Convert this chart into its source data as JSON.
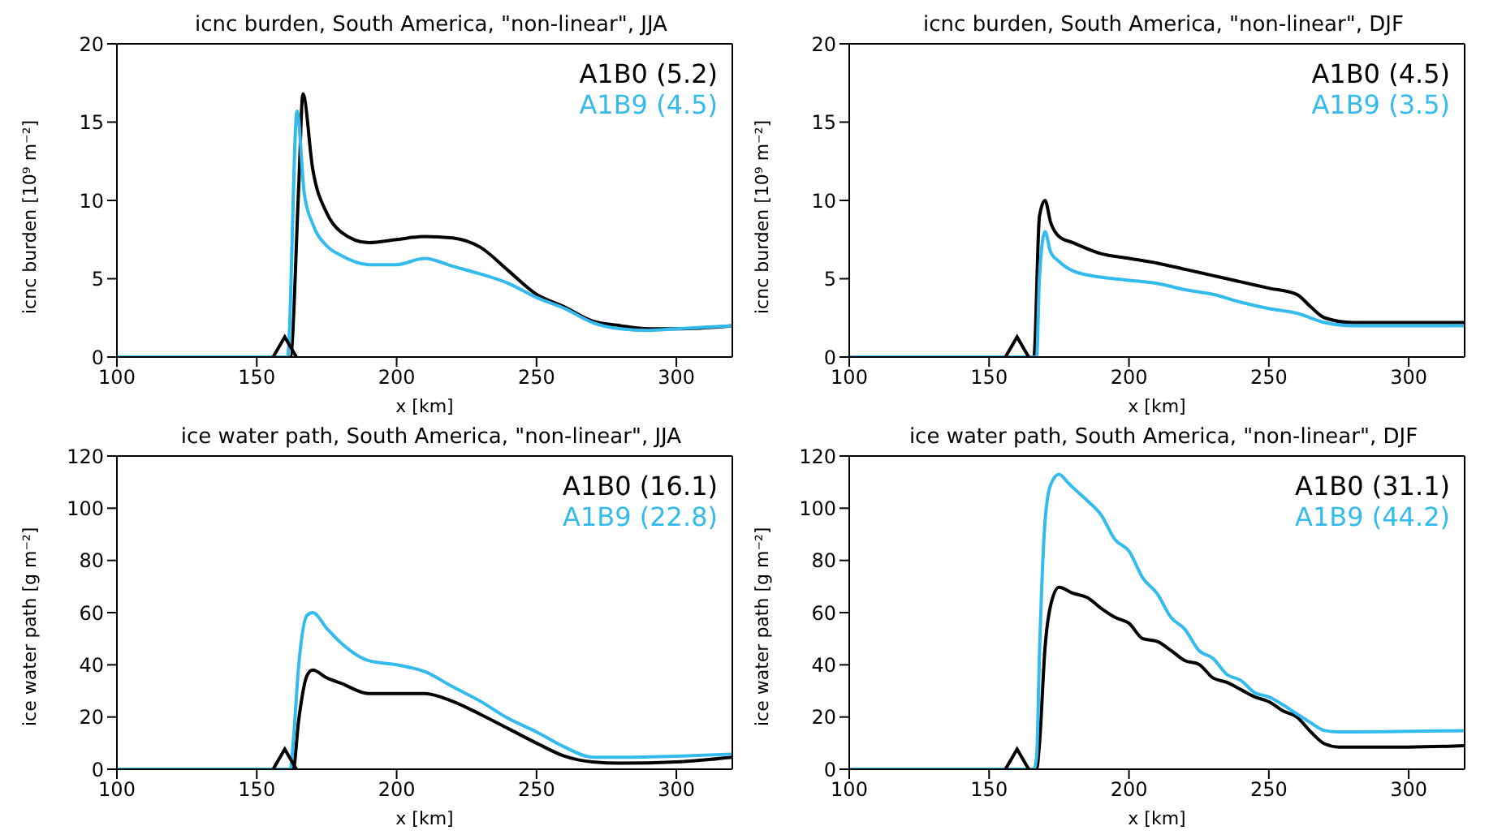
{
  "chart_data": [
    {
      "type": "line",
      "title": "icnc burden, South America, \"non-linear\", JJA",
      "xlabel": "x [km]",
      "ylabel": "icnc burden [10⁹ m⁻²]",
      "xlim": [
        100,
        320
      ],
      "xticks": [
        100,
        150,
        200,
        250,
        300
      ],
      "ylim": [
        0,
        20
      ],
      "yticks": [
        0,
        5,
        10,
        15,
        20
      ],
      "grid": false,
      "legend": "top right",
      "line_style": "solid",
      "series": [
        {
          "name": "A1B0 (5.2)",
          "color": "#000000",
          "x": [
            100,
            162,
            165,
            166.5,
            170,
            175,
            180,
            190,
            200,
            210,
            220,
            230,
            240,
            250,
            260,
            270,
            280,
            290,
            300,
            320
          ],
          "values": [
            0,
            0,
            10.9,
            16.8,
            12.0,
            9.2,
            8.0,
            7.3,
            7.5,
            7.7,
            7.6,
            7.0,
            5.5,
            4.0,
            3.2,
            2.3,
            2.0,
            1.8,
            1.8,
            2.0
          ]
        },
        {
          "name": "A1B9 (4.5)",
          "color": "#33bbee",
          "x": [
            100,
            161,
            164.4,
            167,
            170,
            175,
            180,
            190,
            200,
            210,
            220,
            230,
            240,
            250,
            260,
            270,
            280,
            290,
            300,
            320
          ],
          "values": [
            0,
            0,
            15.7,
            10.4,
            8.5,
            7.1,
            6.5,
            5.9,
            5.9,
            6.3,
            5.8,
            5.3,
            4.7,
            3.8,
            3.1,
            2.2,
            1.8,
            1.7,
            1.8,
            2.0
          ]
        },
        {
          "type": "scatter",
          "marker": "triangle",
          "color": "#000000",
          "x": [
            160
          ],
          "values": [
            0
          ]
        }
      ]
    },
    {
      "type": "line",
      "title": "icnc burden, South America, \"non-linear\", DJF",
      "xlabel": "x [km]",
      "ylabel": "icnc burden [10⁹ m⁻²]",
      "xlim": [
        100,
        320
      ],
      "xticks": [
        100,
        150,
        200,
        250,
        300
      ],
      "ylim": [
        0,
        20
      ],
      "yticks": [
        0,
        5,
        10,
        15,
        20
      ],
      "grid": false,
      "legend": "top right",
      "line_style": "solid",
      "series": [
        {
          "name": "A1B0 (4.5)",
          "color": "#000000",
          "x": [
            100,
            166,
            168,
            170,
            172,
            175,
            180,
            190,
            200,
            210,
            220,
            230,
            240,
            250,
            260,
            265,
            270,
            280,
            300,
            320
          ],
          "values": [
            0,
            0,
            9.0,
            10.0,
            8.6,
            7.7,
            7.3,
            6.6,
            6.3,
            6.0,
            5.6,
            5.2,
            4.8,
            4.4,
            4.0,
            3.2,
            2.5,
            2.2,
            2.2,
            2.2
          ]
        },
        {
          "name": "A1B9 (3.5)",
          "color": "#33bbee",
          "x": [
            100,
            167,
            168,
            170,
            172,
            175,
            180,
            190,
            200,
            210,
            220,
            230,
            240,
            250,
            260,
            270,
            280,
            320
          ],
          "values": [
            0,
            0,
            5.1,
            8.0,
            6.7,
            6.1,
            5.5,
            5.1,
            4.9,
            4.7,
            4.3,
            4.0,
            3.5,
            3.1,
            2.8,
            2.2,
            2.0,
            2.0
          ]
        },
        {
          "type": "scatter",
          "marker": "triangle",
          "color": "#000000",
          "x": [
            160
          ],
          "values": [
            0
          ]
        }
      ]
    },
    {
      "type": "line",
      "title": "ice water path, South America, \"non-linear\", JJA",
      "xlabel": "x [km]",
      "ylabel": "ice water path [g m⁻²]",
      "xlim": [
        100,
        320
      ],
      "xticks": [
        100,
        150,
        200,
        250,
        300
      ],
      "ylim": [
        0,
        120
      ],
      "yticks": [
        0,
        20,
        40,
        60,
        80,
        100,
        120
      ],
      "grid": false,
      "legend": "top right",
      "line_style": "solid",
      "series": [
        {
          "name": "A1B0 (16.1)",
          "color": "#000000",
          "x": [
            100,
            163,
            165,
            168,
            170,
            175,
            180,
            190,
            200,
            210,
            220,
            230,
            240,
            250,
            260,
            270,
            280,
            300,
            320
          ],
          "values": [
            0,
            0,
            19,
            36,
            38,
            35,
            33,
            29,
            29,
            29,
            26,
            21,
            15.5,
            10,
            5,
            2.8,
            2.3,
            2.8,
            4.6
          ]
        },
        {
          "name": "A1B9 (22.8)",
          "color": "#33bbee",
          "x": [
            100,
            162,
            163,
            165,
            168,
            170,
            175,
            180,
            190,
            200,
            210,
            220,
            230,
            240,
            250,
            260,
            270,
            280,
            300,
            320
          ],
          "values": [
            0,
            0,
            10,
            40,
            59,
            60,
            54,
            48.5,
            41.6,
            40,
            37.4,
            31.6,
            26,
            19.4,
            14.3,
            8.5,
            4.6,
            4.6,
            5,
            5.8
          ]
        },
        {
          "type": "scatter",
          "marker": "triangle",
          "color": "#000000",
          "x": [
            160
          ],
          "values": [
            0
          ]
        }
      ]
    },
    {
      "type": "line",
      "title": "ice water path, South America, \"non-linear\", DJF",
      "xlabel": "x [km]",
      "ylabel": "ice water path [g m⁻²]",
      "xlim": [
        100,
        320
      ],
      "xticks": [
        100,
        150,
        200,
        250,
        300
      ],
      "ylim": [
        0,
        120
      ],
      "yticks": [
        0,
        20,
        40,
        60,
        80,
        100,
        120
      ],
      "grid": false,
      "legend": "top right",
      "line_style": "solid",
      "series": [
        {
          "name": "A1B0 (31.1)",
          "color": "#000000",
          "x": [
            100,
            167,
            168,
            170,
            172,
            175,
            180,
            185,
            190,
            195,
            200,
            205,
            210,
            215,
            220,
            225,
            230,
            235,
            240,
            245,
            250,
            255,
            260,
            265,
            270,
            275,
            300,
            320
          ],
          "values": [
            0,
            0,
            9.7,
            46.6,
            62.8,
            69.7,
            67.4,
            65.8,
            61.7,
            58.2,
            55.9,
            50,
            49,
            45.5,
            41.6,
            40.2,
            35,
            33.3,
            30.5,
            27.7,
            25.9,
            22.4,
            20,
            14.3,
            9.7,
            8.5,
            8.5,
            9
          ]
        },
        {
          "name": "A1B9 (44.2)",
          "color": "#33bbee",
          "x": [
            100,
            166,
            167,
            168,
            170,
            172,
            175,
            178,
            180,
            185,
            190,
            195,
            200,
            205,
            210,
            215,
            220,
            225,
            230,
            235,
            240,
            245,
            250,
            255,
            260,
            265,
            270,
            275,
            320
          ],
          "values": [
            0,
            0,
            5,
            44,
            95,
            109,
            113,
            110,
            107.9,
            103,
            97.5,
            88,
            83.6,
            73.2,
            67.4,
            58.2,
            53.6,
            45.5,
            42.5,
            36.3,
            34,
            29.3,
            27.7,
            24.7,
            21.2,
            17.8,
            14.8,
            14.3,
            14.8
          ]
        },
        {
          "type": "scatter",
          "marker": "triangle",
          "color": "#000000",
          "x": [
            160
          ],
          "values": [
            0
          ]
        }
      ]
    }
  ]
}
